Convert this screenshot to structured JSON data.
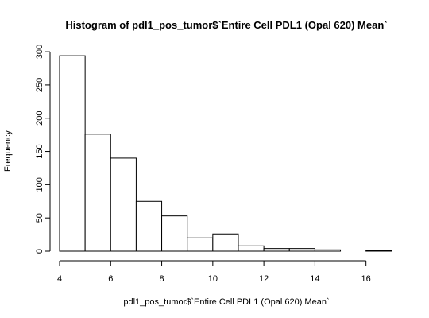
{
  "chart_data": {
    "type": "bar",
    "subtype": "histogram",
    "title": "Histogram of pdl1_pos_tumor$`Entire Cell PDL1 (Opal 620) Mean`",
    "xlabel": "pdl1_pos_tumor$`Entire Cell PDL1 (Opal 620) Mean`",
    "ylabel": "Frequency",
    "bins": [
      {
        "x0": 4,
        "x1": 5,
        "value": 294
      },
      {
        "x0": 5,
        "x1": 6,
        "value": 176
      },
      {
        "x0": 6,
        "x1": 7,
        "value": 140
      },
      {
        "x0": 7,
        "x1": 8,
        "value": 75
      },
      {
        "x0": 8,
        "x1": 9,
        "value": 53
      },
      {
        "x0": 9,
        "x1": 10,
        "value": 20
      },
      {
        "x0": 10,
        "x1": 11,
        "value": 26
      },
      {
        "x0": 11,
        "x1": 12,
        "value": 8
      },
      {
        "x0": 12,
        "x1": 13,
        "value": 4
      },
      {
        "x0": 13,
        "x1": 14,
        "value": 4
      },
      {
        "x0": 14,
        "x1": 15,
        "value": 2
      },
      {
        "x0": 15,
        "x1": 16,
        "value": 0
      },
      {
        "x0": 16,
        "x1": 17,
        "value": 1
      }
    ],
    "xticks": [
      4,
      6,
      8,
      10,
      12,
      14,
      16
    ],
    "yticks": [
      0,
      50,
      100,
      150,
      200,
      250,
      300
    ],
    "xlim": [
      4,
      17
    ],
    "ylim": [
      0,
      300
    ],
    "grid": false,
    "legend": "none",
    "colors": {
      "bar_fill": "#ffffff",
      "bar_stroke": "#000000"
    }
  }
}
